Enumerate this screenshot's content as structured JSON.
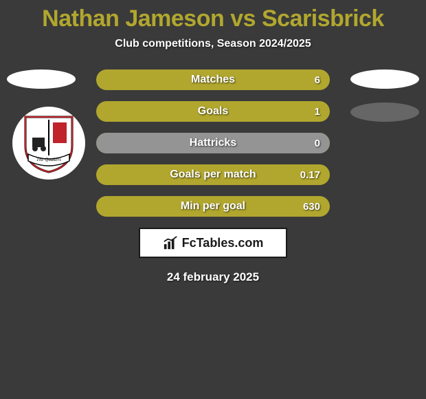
{
  "title": {
    "player1": "Nathan Jameson",
    "vs": "vs",
    "player2": "Scarisbrick",
    "color": "#b1a72e"
  },
  "subtitle": "Club competitions, Season 2024/2025",
  "background_color": "#3a3a3a",
  "bars": {
    "track_color": "#b1a72e",
    "fill_color": "#949494",
    "label_color": "#ffffff",
    "value_color": "#ffffff",
    "height": 30,
    "gap": 16,
    "rows": [
      {
        "label": "Matches",
        "value": "6",
        "fill_pct": 0
      },
      {
        "label": "Goals",
        "value": "1",
        "fill_pct": 0
      },
      {
        "label": "Hattricks",
        "value": "0",
        "fill_pct": 100
      },
      {
        "label": "Goals per match",
        "value": "0.17",
        "fill_pct": 0
      },
      {
        "label": "Min per goal",
        "value": "630",
        "fill_pct": 0
      }
    ]
  },
  "side_ellipses": {
    "left_top_color": "#ffffff",
    "right_top_color": "#ffffff",
    "right_second_color": "#6b6b6b"
  },
  "badge": {
    "ring_color": "#ffffff",
    "shield_border": "#000000",
    "shield_fill_top": "#ffffff",
    "shield_accent": "#c0232a",
    "banner_text": "The Quakers"
  },
  "brand": {
    "text": "FcTables.com",
    "icon": "bar-chart-icon",
    "box_bg": "#ffffff",
    "box_border": "#1a1a1a"
  },
  "date": "24 february 2025"
}
